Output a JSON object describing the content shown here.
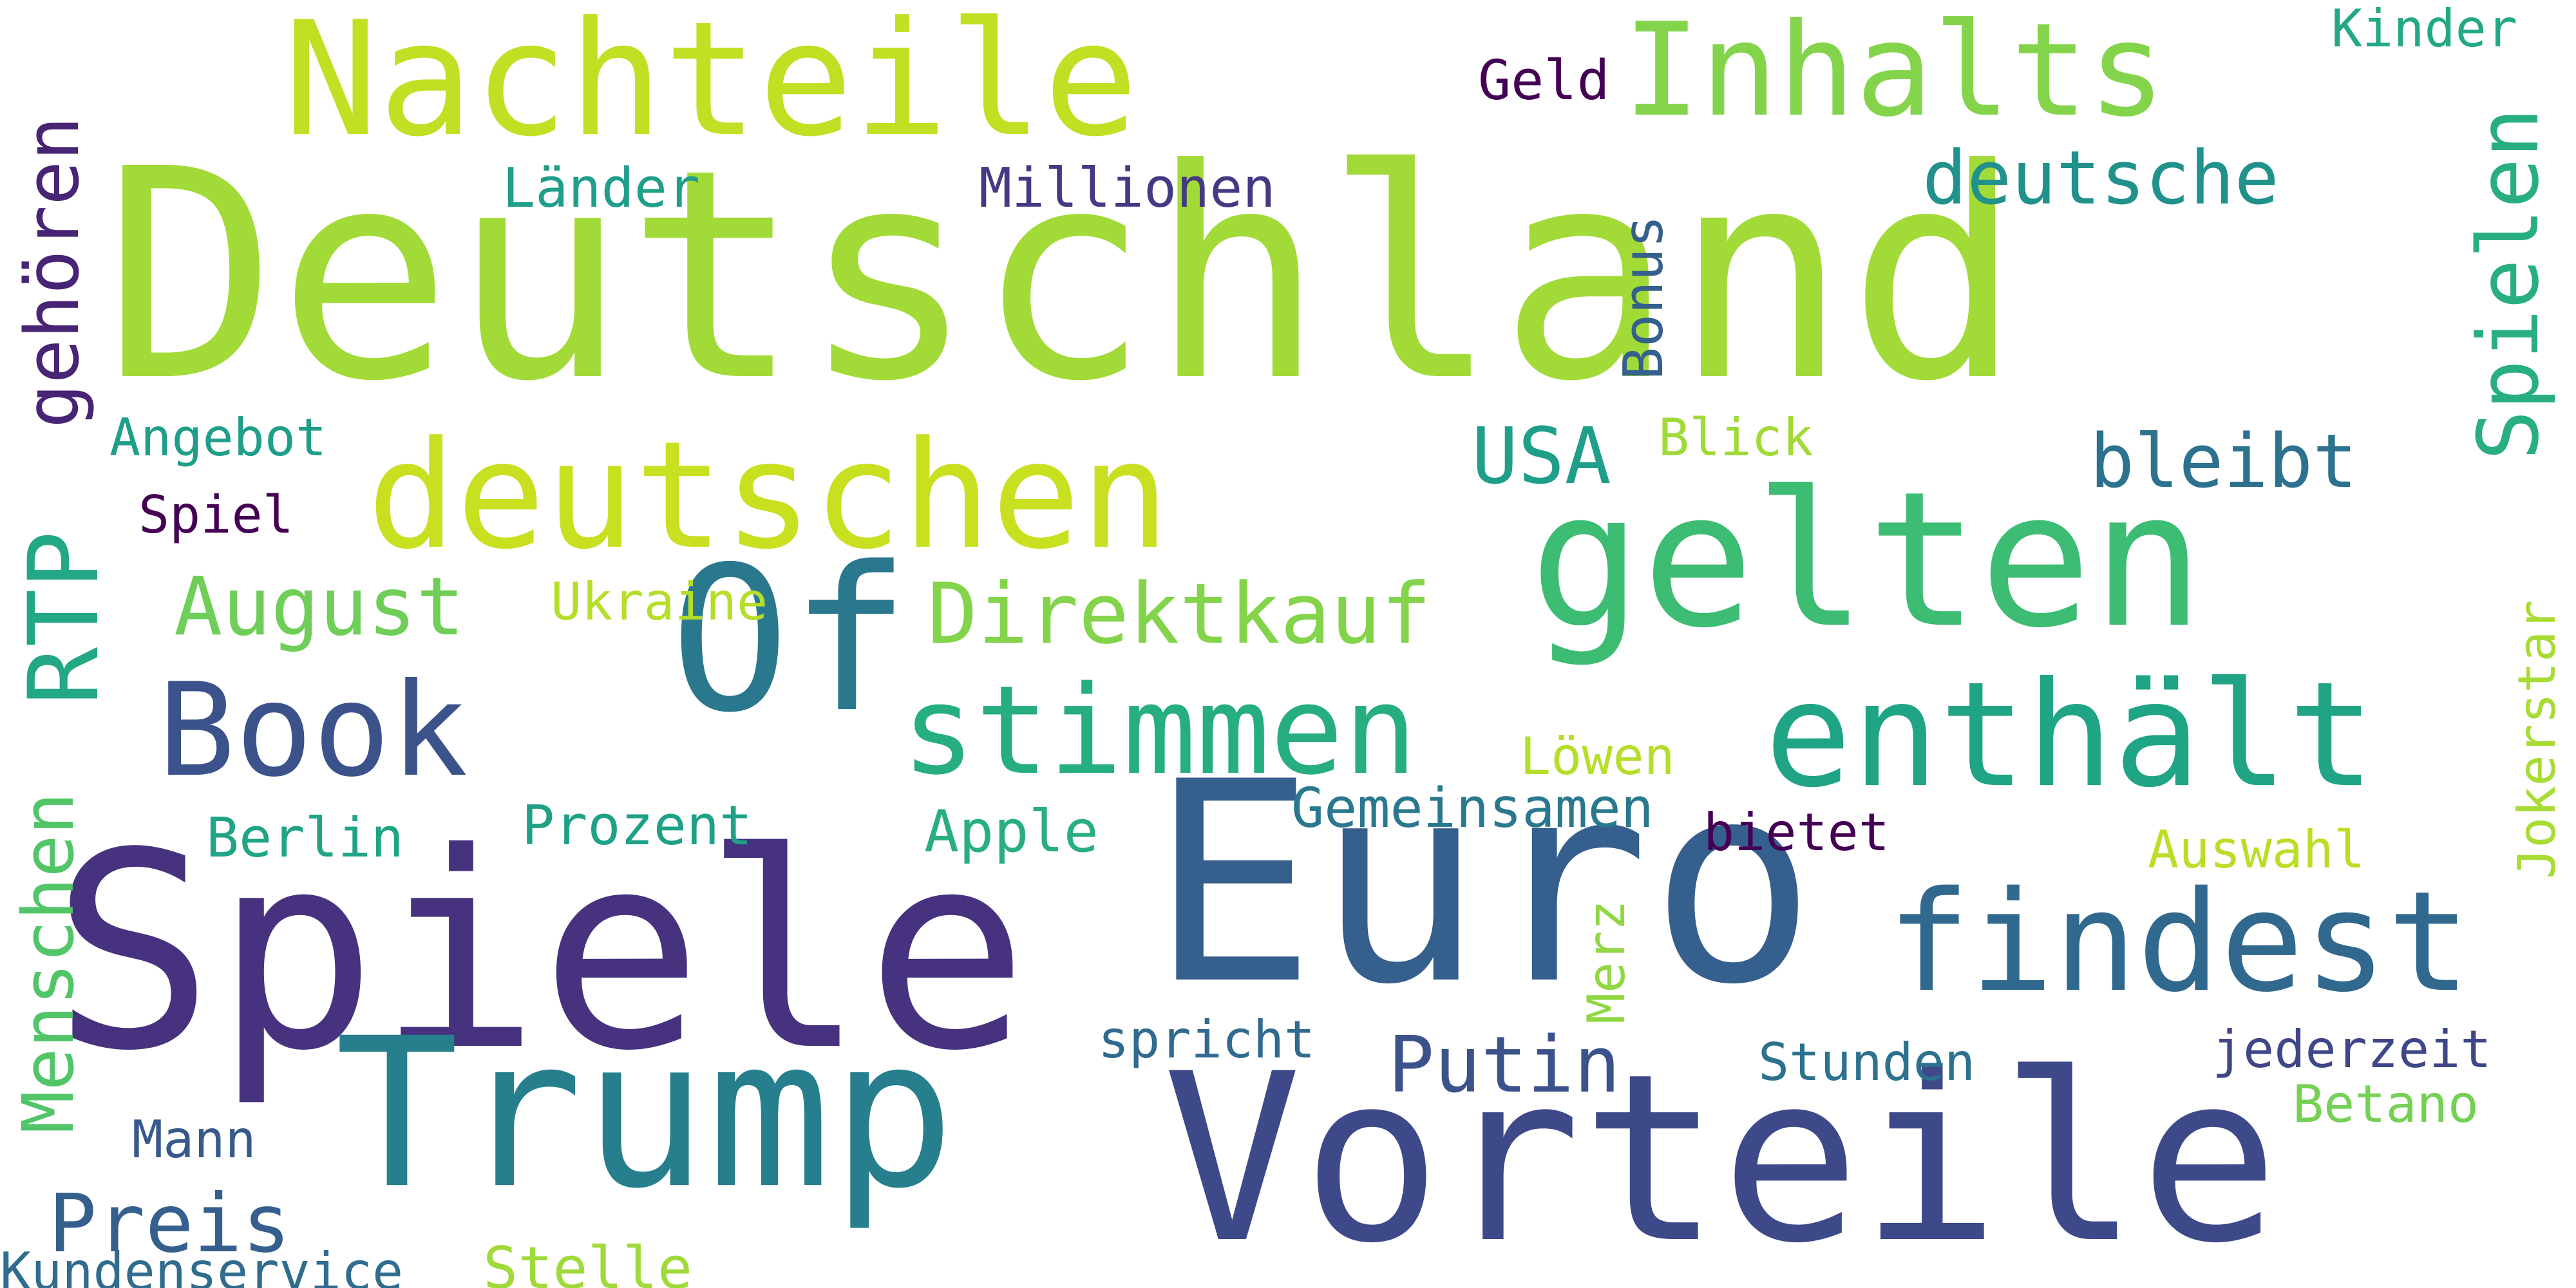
{
  "palette": "viridis",
  "background": "#ffffff",
  "words": {
    "deutschland": "Deutschland",
    "spiele": "Spiele",
    "euro": "Euro",
    "trump": "Trump",
    "vorteile": "Vorteile",
    "gelten": "gelten",
    "of": "Of",
    "nachteile": "Nachteile",
    "deutschen": "deutschen",
    "findest": "findest",
    "enthalt": "enthält",
    "inhalts": "Inhalts",
    "book": "Book",
    "stimmen": "stimmen",
    "direktkauf": "Direktkauf",
    "august": "August",
    "putin": "Putin",
    "preis": "Preis",
    "deutsche": "deutsche",
    "bleibt": "bleibt",
    "usa": "USA",
    "gemeinsamen": "Gemeinsamen",
    "apple": "Apple",
    "prozent": "Prozent",
    "berlin": "Berlin",
    "laender": "Länder",
    "millionen": "Millionen",
    "geld": "Geld",
    "kinder": "Kinder",
    "angebot": "Angebot",
    "spiel": "Spiel",
    "ukraine": "Ukraine",
    "blick": "Blick",
    "loewen": "Löwen",
    "bietet": "bietet",
    "auswahl": "Auswahl",
    "spricht": "spricht",
    "stunden": "Stunden",
    "jederzeit": "jederzeit",
    "betano": "Betano",
    "mann": "Mann",
    "kundenservice": "Kundenservice",
    "stelle": "Stelle",
    "gehoeren": "gehören",
    "rtp": "RTP",
    "menschen": "Menschen",
    "bonus": "Bonus",
    "merz": "Merz",
    "spielen": "Spielen",
    "jokerstar": "Jokerstar"
  }
}
